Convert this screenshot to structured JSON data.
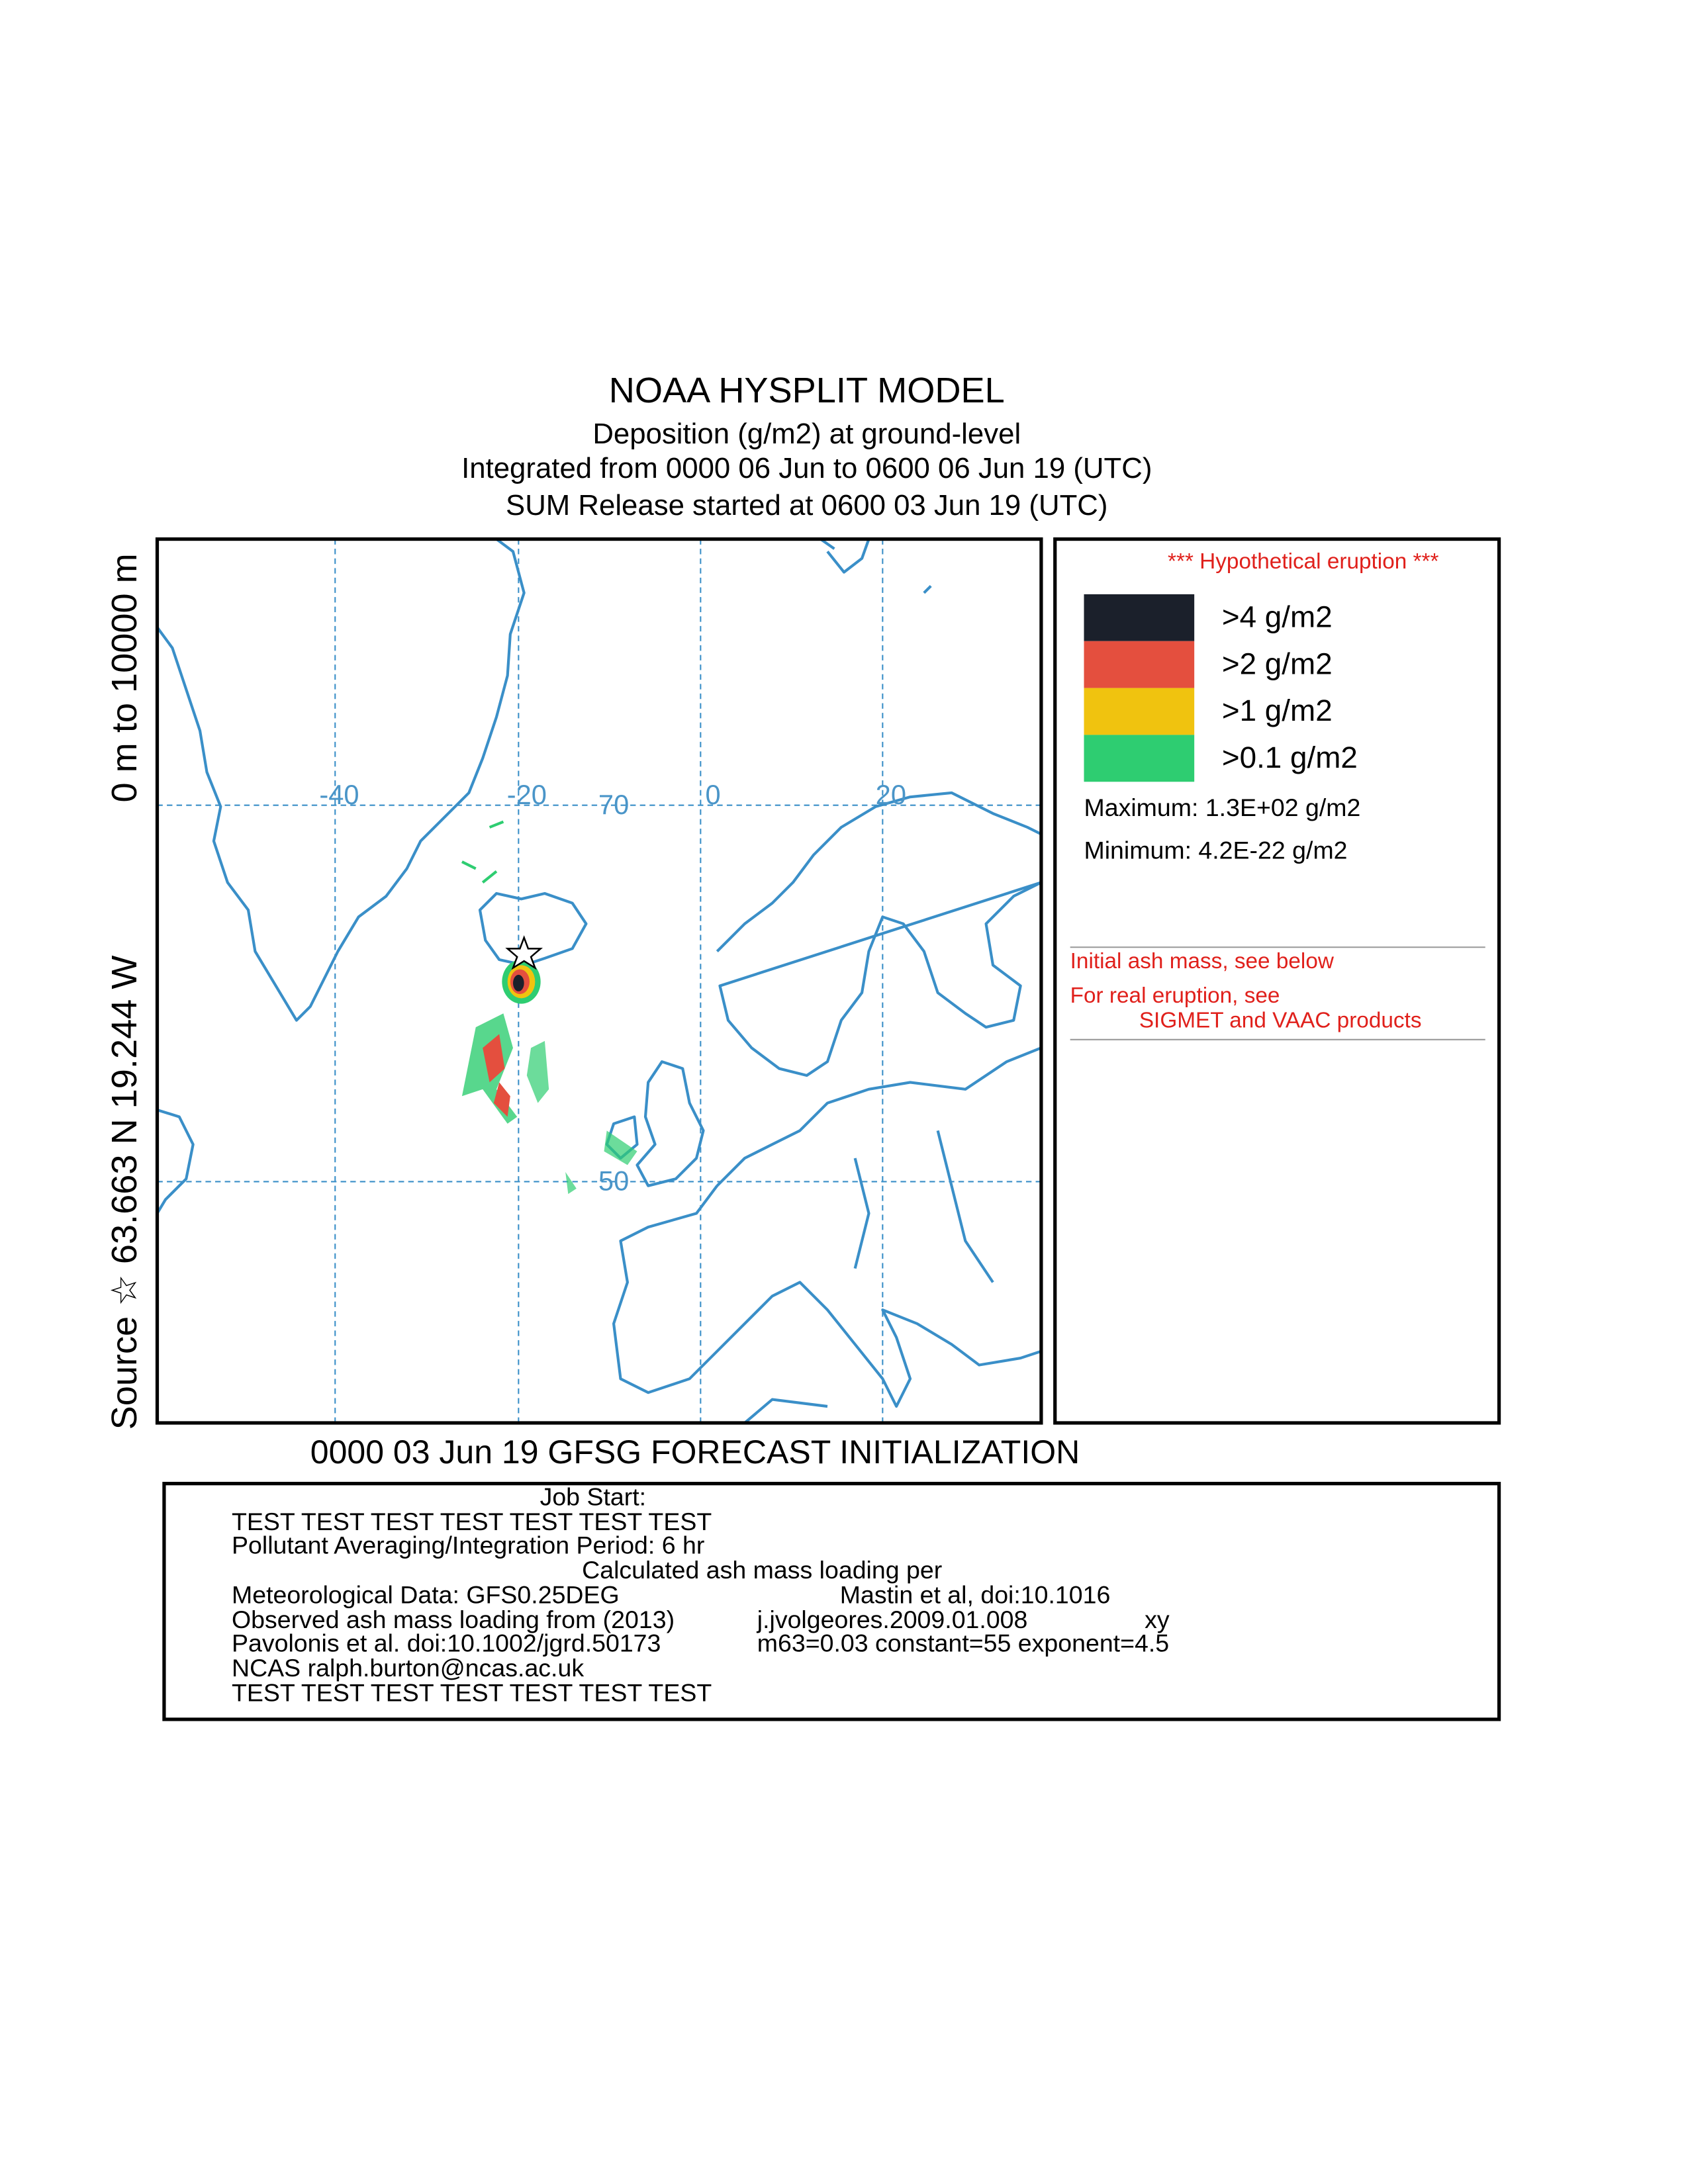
{
  "header": {
    "title": "NOAA HYSPLIT MODEL",
    "lines": [
      "Deposition  (g/m2) at ground-level",
      "Integrated from 0000 06 Jun to 0600 06 Jun 19 (UTC)",
      "SUM  Release started at 0600 03 Jun 19 (UTC)"
    ]
  },
  "side_labels": [
    "Source ☆ 63.663  N  19.244  W",
    "0 m to 10000 m"
  ],
  "map": {
    "grid_labels": [
      "-40",
      "-20",
      "70",
      "0",
      "20",
      "50"
    ]
  },
  "legend": {
    "note": "*** Hypothetical eruption ***",
    "entries": [
      {
        "label": ">4 g/m2",
        "color": "#1b202b"
      },
      {
        "label": ">2 g/m2",
        "color": "#e44f3e"
      },
      {
        "label": ">1 g/m2",
        "color": "#f0c30f"
      },
      {
        "label": ">0.1 g/m2",
        "color": "#2ecd71"
      }
    ],
    "maximum": "Maximum: 1.3E+02 g/m2",
    "minimum": "Minimum: 4.2E-22 g/m2",
    "remarks": [
      "Initial ash mass, see below",
      "For real eruption, see",
      "SIGMET and VAAC products"
    ]
  },
  "footer": {
    "initialization": "0000 03 Jun 19 GFSG FORECAST INITIALIZATION",
    "info": [
      "Job Start:",
      "TEST TEST TEST TEST TEST TEST TEST",
      "Pollutant Averaging/Integration Period: 6 hr",
      "Calculated ash mass loading per",
      "Meteorological Data: GFS0.25DEG",
      "Mastin et al, doi:10.1016",
      "Observed ash mass loading from (2013)",
      "j.jvolgeores.2009.01.008",
      "xy",
      "Pavolonis et al. doi:10.1002/jgrd.50173",
      "m63=0.03  constant=55 exponent=4.5",
      "NCAS ralph.burton@ncas.ac.uk",
      "TEST TEST TEST TEST TEST TEST TEST"
    ]
  }
}
